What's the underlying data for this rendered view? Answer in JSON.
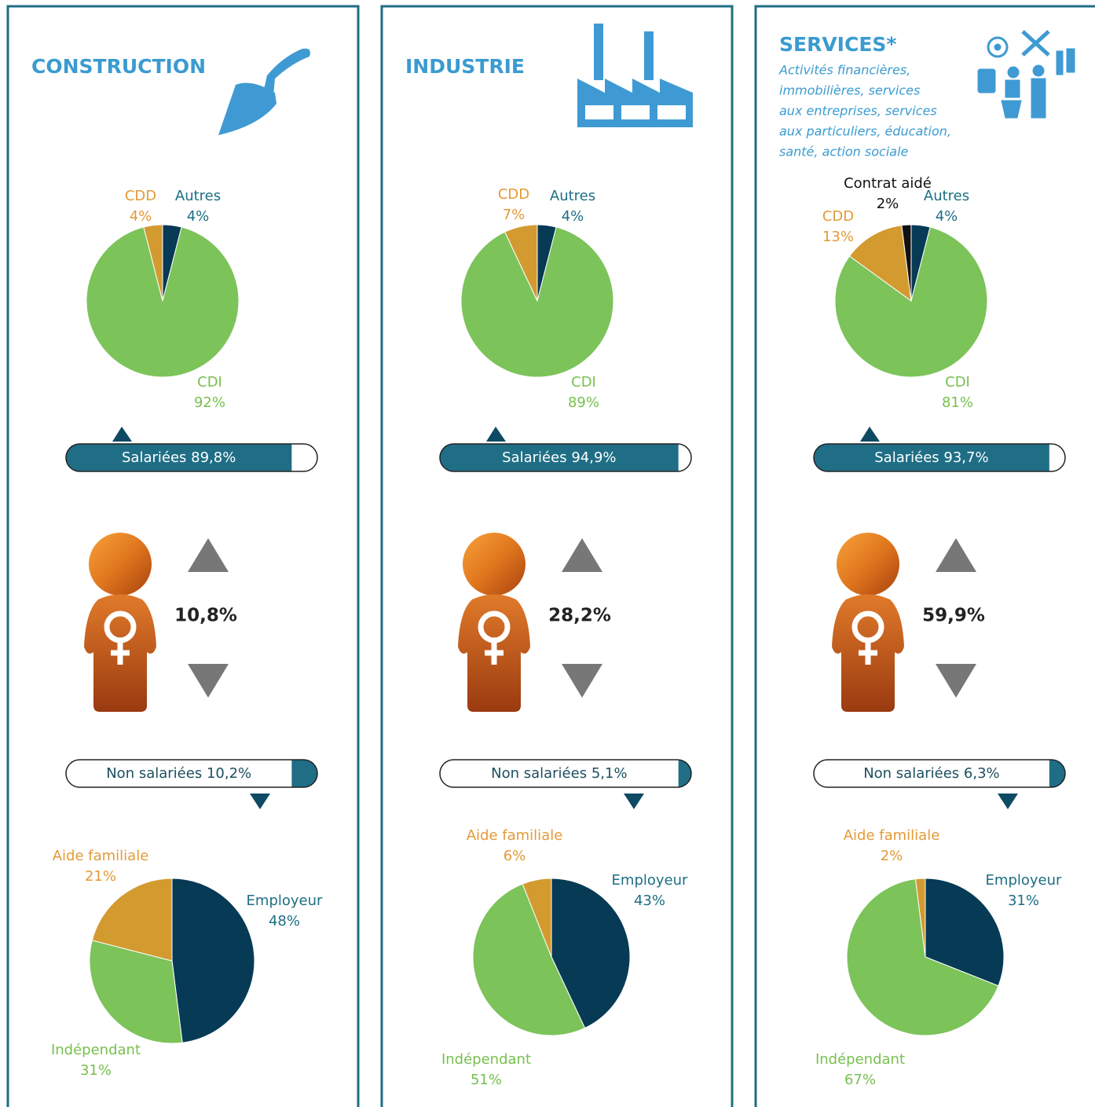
{
  "panels": [
    {
      "title": "CONSTRUCTION",
      "salaried": {
        "label": "Salariées",
        "value": 89.8,
        "value_label": "89,8%"
      },
      "women": "10,8%",
      "non_salaried": {
        "label": "Non salariées",
        "value": 10.2,
        "value_label": "10,2%"
      }
    },
    {
      "title": "INDUSTRIE",
      "salaried": {
        "label": "Salariées",
        "value": 94.9,
        "value_label": "94,9%"
      },
      "women": "28,2%",
      "non_salaried": {
        "label": "Non salariées",
        "value": 5.1,
        "value_label": "5,1%"
      }
    },
    {
      "title": "SERVICES*",
      "subtitle_lines": [
        "Activités financières,",
        "immobilières, services",
        "aux entreprises, services",
        "aux particuliers, éducation,",
        "santé, action sociale"
      ],
      "salaried": {
        "label": "Salariées",
        "value": 93.7,
        "value_label": "93,7%"
      },
      "women": "59,9%",
      "non_salaried": {
        "label": "Non salariées",
        "value": 6.3,
        "value_label": "6,3%"
      }
    }
  ],
  "chart_data": [
    {
      "type": "pie",
      "categories": [
        "Autres",
        "CDI",
        "CDD"
      ],
      "values": [
        4,
        92,
        4
      ],
      "value_labels": [
        "4%",
        "92%",
        "4%"
      ],
      "colors": [
        "#063a55",
        "#7cc35a",
        "#d39a30"
      ],
      "label_colors": [
        "#1d6e84",
        "#78c04f",
        "#e39a37"
      ]
    },
    {
      "type": "pie",
      "categories": [
        "Employeur",
        "Indépendant",
        "Aide familiale"
      ],
      "values": [
        48,
        31,
        21
      ],
      "value_labels": [
        "48%",
        "31%",
        "21%"
      ],
      "colors": [
        "#063a55",
        "#7cc35a",
        "#d39a30"
      ],
      "label_colors": [
        "#1d6e84",
        "#78c04f",
        "#e39a37"
      ]
    },
    {
      "type": "pie",
      "categories": [
        "Autres",
        "CDI",
        "CDD"
      ],
      "values": [
        4,
        89,
        7
      ],
      "value_labels": [
        "4%",
        "89%",
        "7%"
      ],
      "colors": [
        "#063a55",
        "#7cc35a",
        "#d39a30"
      ],
      "label_colors": [
        "#1d6e84",
        "#78c04f",
        "#e39a37"
      ]
    },
    {
      "type": "pie",
      "categories": [
        "Employeur",
        "Indépendant",
        "Aide familiale"
      ],
      "values": [
        43,
        51,
        6
      ],
      "value_labels": [
        "43%",
        "51%",
        "6%"
      ],
      "colors": [
        "#063a55",
        "#7cc35a",
        "#d39a30"
      ],
      "label_colors": [
        "#1d6e84",
        "#78c04f",
        "#e39a37"
      ]
    },
    {
      "type": "pie",
      "categories": [
        "Autres",
        "CDI",
        "CDD",
        "Contrat aidé"
      ],
      "values": [
        4,
        81,
        13,
        2
      ],
      "value_labels": [
        "4%",
        "81%",
        "13%",
        "2%"
      ],
      "colors": [
        "#063a55",
        "#7cc35a",
        "#d39a30",
        "#111111"
      ],
      "label_colors": [
        "#1d6e84",
        "#78c04f",
        "#e39a37",
        "#111111"
      ]
    },
    {
      "type": "pie",
      "categories": [
        "Employeur",
        "Indépendant",
        "Aide familiale"
      ],
      "values": [
        31,
        67,
        2
      ],
      "value_labels": [
        "31%",
        "67%",
        "2%"
      ],
      "colors": [
        "#063a55",
        "#7cc35a",
        "#d39a30"
      ],
      "label_colors": [
        "#1d6e84",
        "#78c04f",
        "#e39a37"
      ]
    }
  ]
}
